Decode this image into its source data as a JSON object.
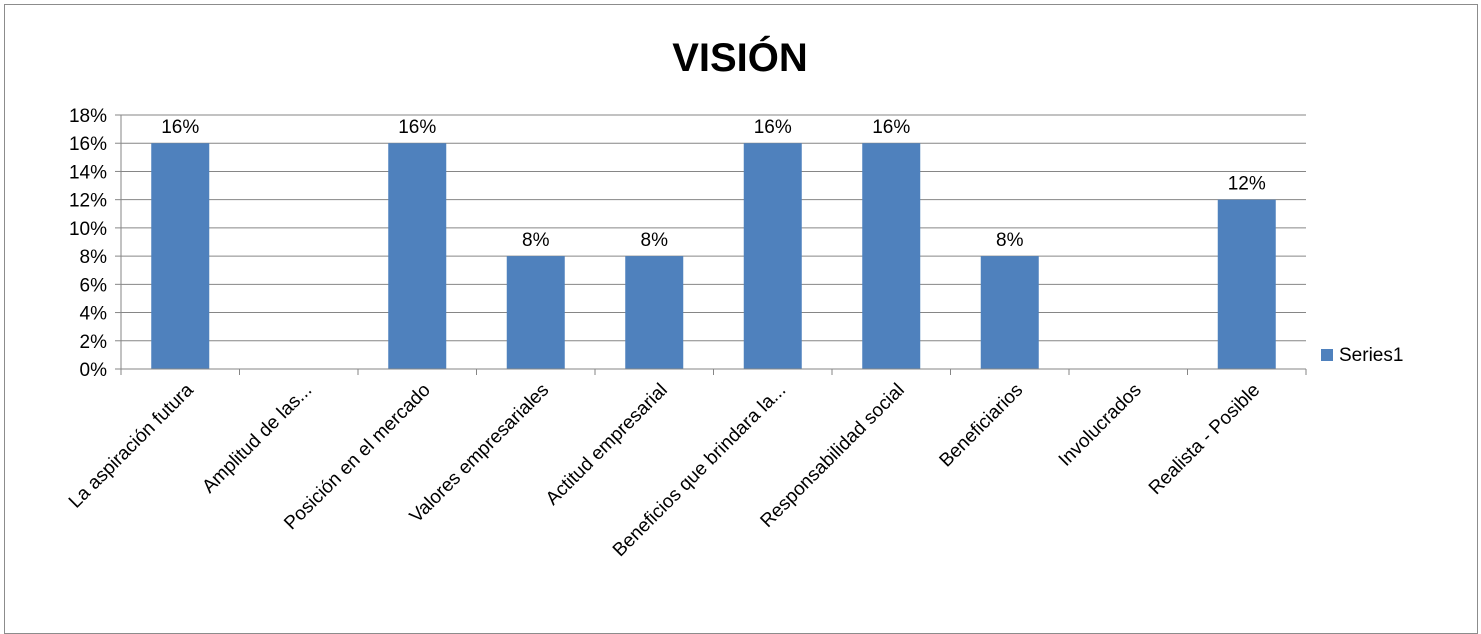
{
  "chart_data": {
    "type": "bar",
    "title": "VISIÓN",
    "categories": [
      "La aspiración futura",
      "Amplitud de las...",
      "Posición en el mercado",
      "Valores empresariales",
      "Actitud empresarial",
      "Beneficios que brindara la...",
      "Responsabilidad social",
      "Beneficiarios",
      "Involucrados",
      "Realista - Posible"
    ],
    "series": [
      {
        "name": "Series1",
        "values": [
          16,
          0,
          16,
          8,
          8,
          16,
          16,
          8,
          0,
          12
        ]
      }
    ],
    "data_labels": [
      "16%",
      "",
      "16%",
      "8%",
      "8%",
      "16%",
      "16%",
      "8%",
      "",
      "12%"
    ],
    "y_ticks": [
      "0%",
      "2%",
      "4%",
      "6%",
      "8%",
      "10%",
      "12%",
      "14%",
      "16%",
      "18%"
    ],
    "ylim": [
      0,
      18
    ],
    "grid": true,
    "legend": "right",
    "colors": {
      "bar": "#4f81bd",
      "grid": "#868686",
      "axis": "#868686"
    }
  }
}
